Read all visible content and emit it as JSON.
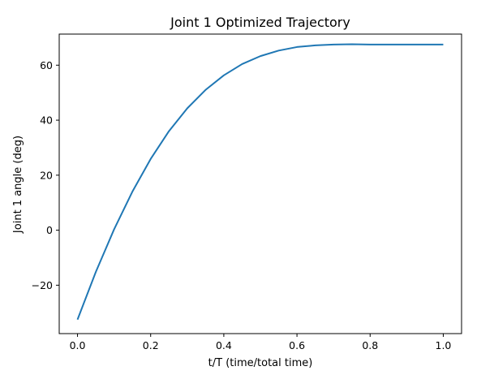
{
  "chart_data": {
    "type": "line",
    "title": "Joint 1 Optimized Trajectory",
    "xlabel": "t/T (time/total time)",
    "ylabel": "Joint 1 angle (deg)",
    "xlim": [
      -0.05,
      1.05
    ],
    "ylim": [
      -37.6,
      71.3
    ],
    "xticks": [
      0.0,
      0.2,
      0.4,
      0.6,
      0.8,
      1.0
    ],
    "xtick_labels": [
      "0.0",
      "0.2",
      "0.4",
      "0.6",
      "0.8",
      "1.0"
    ],
    "yticks": [
      -20,
      0,
      20,
      40,
      60
    ],
    "ytick_labels": [
      "−20",
      "0",
      "20",
      "40",
      "60"
    ],
    "grid": false,
    "series": [
      {
        "color": "#1f77b4",
        "x": [
          0.0,
          0.05,
          0.1,
          0.15,
          0.2,
          0.25,
          0.3,
          0.35,
          0.4,
          0.45,
          0.5,
          0.55,
          0.6,
          0.65,
          0.7,
          0.75,
          0.8,
          0.85,
          0.9,
          0.95,
          1.0
        ],
        "y": [
          -32.5,
          -15.2,
          0.3,
          14.0,
          25.9,
          36.0,
          44.3,
          51.0,
          56.3,
          60.4,
          63.3,
          65.3,
          66.6,
          67.2,
          67.5,
          67.6,
          67.5,
          67.5,
          67.5,
          67.5,
          67.5
        ]
      }
    ]
  }
}
